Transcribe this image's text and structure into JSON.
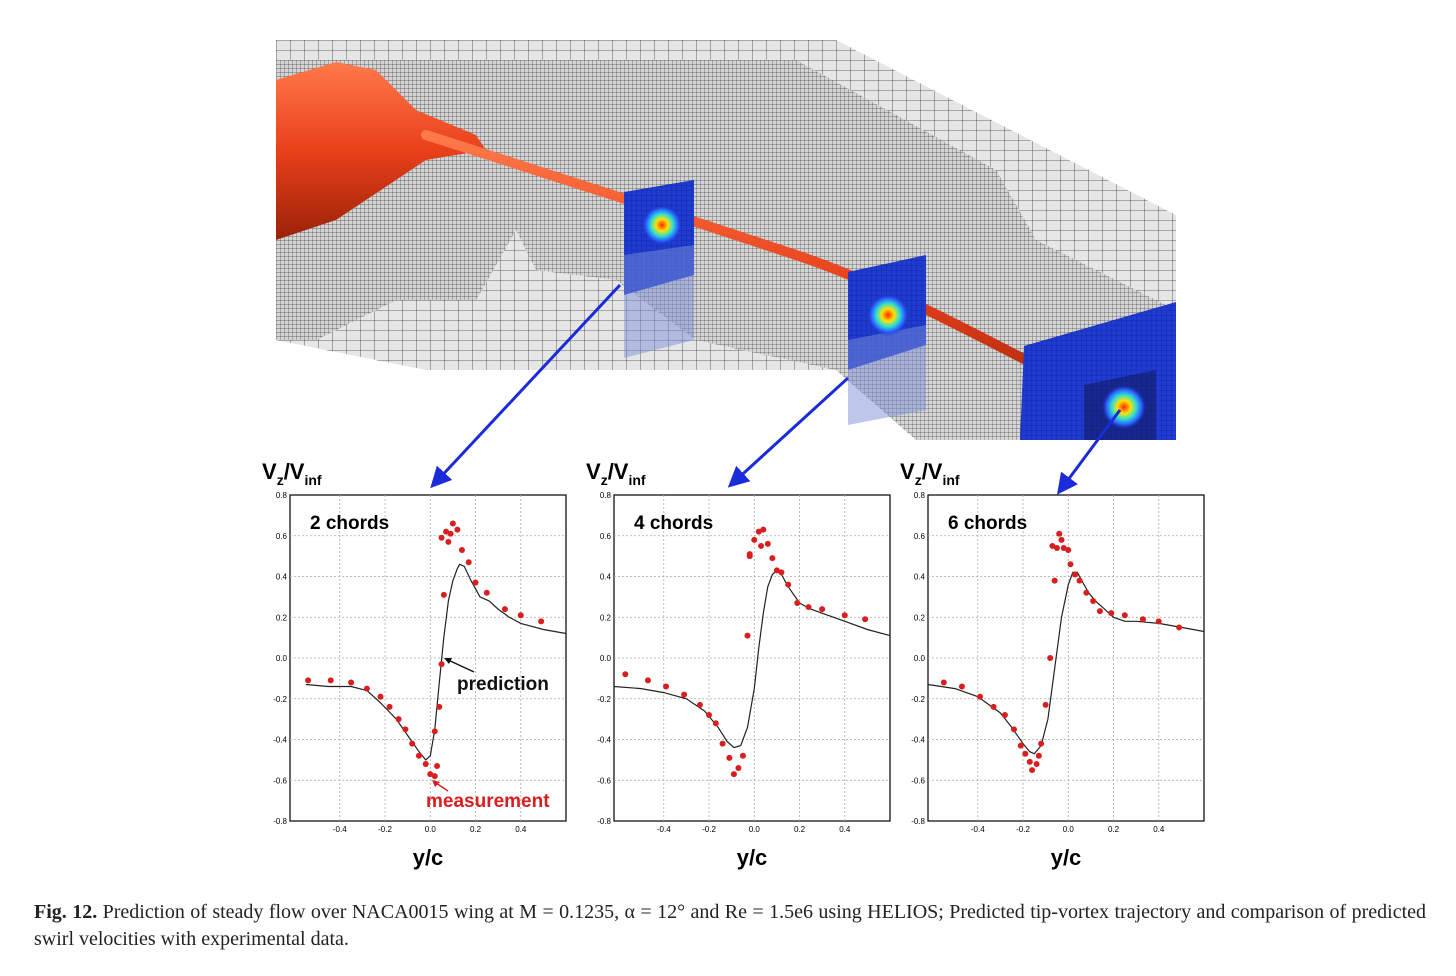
{
  "caption": {
    "label": "Fig. 12.",
    "text": "Prediction of steady flow over NACA0015 wing at M = 0.1235, α = 12° and Re = 1.5e6 using HELIOS; Predicted tip-vortex trajectory and comparison of predicted swirl velocities with experimental data."
  },
  "colors": {
    "vortex": "#e8401a",
    "slice": "#1a2fc8",
    "arrow": "#1a2bd8",
    "measurement": "#d81e1e",
    "prediction": "#222222",
    "mesh": "#555555"
  },
  "annotations": {
    "prediction_label": "prediction",
    "measurement_label": "measurement"
  },
  "chart_data": [
    {
      "type": "scatter",
      "title": "2 chords",
      "ylabel": "Vz/Vinf",
      "xlabel": "y/c",
      "xlim": [
        -0.62,
        0.6
      ],
      "ylim": [
        -0.8,
        0.8
      ],
      "xticks": [
        -0.4,
        -0.2,
        0.0,
        0.2,
        0.4
      ],
      "yticks": [
        -0.8,
        -0.6,
        -0.4,
        -0.2,
        0.0,
        0.2,
        0.4,
        0.6,
        0.8
      ],
      "grid": true,
      "series": [
        {
          "name": "prediction",
          "kind": "line",
          "x": [
            -0.55,
            -0.45,
            -0.35,
            -0.28,
            -0.22,
            -0.15,
            -0.1,
            -0.05,
            -0.02,
            0.0,
            0.02,
            0.04,
            0.06,
            0.08,
            0.1,
            0.12,
            0.13,
            0.15,
            0.18,
            0.22,
            0.26,
            0.3,
            0.35,
            0.4,
            0.5,
            0.6
          ],
          "y": [
            -0.13,
            -0.14,
            -0.14,
            -0.16,
            -0.22,
            -0.3,
            -0.38,
            -0.46,
            -0.5,
            -0.48,
            -0.35,
            -0.12,
            0.1,
            0.28,
            0.38,
            0.44,
            0.46,
            0.45,
            0.38,
            0.3,
            0.28,
            0.24,
            0.2,
            0.17,
            0.14,
            0.12
          ]
        },
        {
          "name": "measurement",
          "kind": "scatter",
          "x": [
            -0.54,
            -0.44,
            -0.35,
            -0.28,
            -0.22,
            -0.18,
            -0.14,
            -0.11,
            -0.08,
            -0.05,
            -0.02,
            0.0,
            0.02,
            0.03,
            0.02,
            0.04,
            0.05,
            0.06,
            0.08,
            0.09,
            0.1,
            0.12,
            0.14,
            0.17,
            0.2,
            0.25,
            0.33,
            0.4,
            0.49,
            0.05,
            0.07
          ],
          "y": [
            -0.11,
            -0.11,
            -0.12,
            -0.15,
            -0.19,
            -0.24,
            -0.3,
            -0.35,
            -0.42,
            -0.48,
            -0.52,
            -0.57,
            -0.58,
            -0.53,
            -0.36,
            -0.24,
            -0.03,
            0.31,
            0.57,
            0.61,
            0.66,
            0.63,
            0.53,
            0.47,
            0.37,
            0.32,
            0.24,
            0.21,
            0.18,
            0.59,
            0.62
          ]
        }
      ]
    },
    {
      "type": "scatter",
      "title": "4 chords",
      "ylabel": "Vz/Vinf",
      "xlabel": "y/c",
      "xlim": [
        -0.62,
        0.6
      ],
      "ylim": [
        -0.8,
        0.8
      ],
      "xticks": [
        -0.4,
        -0.2,
        0.0,
        0.2,
        0.4
      ],
      "yticks": [
        -0.8,
        -0.6,
        -0.4,
        -0.2,
        0.0,
        0.2,
        0.4,
        0.6,
        0.8
      ],
      "grid": true,
      "series": [
        {
          "name": "prediction",
          "kind": "line",
          "x": [
            -0.62,
            -0.5,
            -0.4,
            -0.3,
            -0.22,
            -0.16,
            -0.12,
            -0.09,
            -0.06,
            -0.03,
            0.0,
            0.02,
            0.04,
            0.06,
            0.08,
            0.1,
            0.12,
            0.15,
            0.2,
            0.25,
            0.3,
            0.4,
            0.5,
            0.6
          ],
          "y": [
            -0.14,
            -0.15,
            -0.17,
            -0.2,
            -0.26,
            -0.34,
            -0.41,
            -0.44,
            -0.43,
            -0.34,
            -0.15,
            0.05,
            0.22,
            0.35,
            0.41,
            0.43,
            0.41,
            0.35,
            0.27,
            0.24,
            0.22,
            0.18,
            0.14,
            0.11
          ]
        },
        {
          "name": "measurement",
          "kind": "scatter",
          "x": [
            -0.57,
            -0.47,
            -0.39,
            -0.31,
            -0.24,
            -0.2,
            -0.17,
            -0.14,
            -0.11,
            -0.09,
            -0.07,
            -0.05,
            -0.03,
            -0.02,
            -0.02,
            0.0,
            0.02,
            0.04,
            0.06,
            0.08,
            0.1,
            0.12,
            0.15,
            0.19,
            0.24,
            0.3,
            0.4,
            0.49,
            0.03
          ],
          "y": [
            -0.08,
            -0.11,
            -0.14,
            -0.18,
            -0.23,
            -0.28,
            -0.32,
            -0.42,
            -0.49,
            -0.57,
            -0.54,
            -0.48,
            0.11,
            0.5,
            0.51,
            0.58,
            0.62,
            0.63,
            0.56,
            0.49,
            0.43,
            0.42,
            0.36,
            0.27,
            0.25,
            0.24,
            0.21,
            0.19,
            0.55
          ]
        }
      ]
    },
    {
      "type": "scatter",
      "title": "6 chords",
      "ylabel": "Vz/Vinf",
      "xlabel": "y/c",
      "xlim": [
        -0.62,
        0.6
      ],
      "ylim": [
        -0.8,
        0.8
      ],
      "xticks": [
        -0.4,
        -0.2,
        0.0,
        0.2,
        0.4
      ],
      "yticks": [
        -0.8,
        -0.6,
        -0.4,
        -0.2,
        0.0,
        0.2,
        0.4,
        0.6,
        0.8
      ],
      "grid": true,
      "series": [
        {
          "name": "prediction",
          "kind": "line",
          "x": [
            -0.62,
            -0.5,
            -0.4,
            -0.3,
            -0.25,
            -0.2,
            -0.17,
            -0.15,
            -0.12,
            -0.09,
            -0.06,
            -0.03,
            0.0,
            0.02,
            0.04,
            0.06,
            0.09,
            0.12,
            0.16,
            0.2,
            0.25,
            0.3,
            0.4,
            0.5,
            0.6
          ],
          "y": [
            -0.13,
            -0.15,
            -0.19,
            -0.27,
            -0.34,
            -0.42,
            -0.46,
            -0.47,
            -0.43,
            -0.3,
            -0.05,
            0.2,
            0.36,
            0.42,
            0.42,
            0.38,
            0.32,
            0.28,
            0.24,
            0.2,
            0.18,
            0.18,
            0.17,
            0.15,
            0.13
          ]
        },
        {
          "name": "measurement",
          "kind": "scatter",
          "x": [
            -0.55,
            -0.47,
            -0.39,
            -0.33,
            -0.28,
            -0.24,
            -0.21,
            -0.19,
            -0.17,
            -0.16,
            -0.14,
            -0.13,
            -0.12,
            -0.1,
            -0.08,
            -0.06,
            -0.05,
            -0.04,
            -0.03,
            -0.02,
            0.0,
            0.01,
            0.03,
            0.05,
            0.08,
            0.11,
            0.14,
            0.19,
            0.25,
            0.33,
            0.4,
            0.49,
            -0.07
          ],
          "y": [
            -0.12,
            -0.14,
            -0.19,
            -0.24,
            -0.28,
            -0.35,
            -0.43,
            -0.47,
            -0.51,
            -0.55,
            -0.52,
            -0.48,
            -0.42,
            -0.23,
            0.0,
            0.38,
            0.54,
            0.61,
            0.58,
            0.54,
            0.53,
            0.46,
            0.41,
            0.38,
            0.32,
            0.28,
            0.23,
            0.22,
            0.21,
            0.19,
            0.18,
            0.15,
            0.55
          ]
        }
      ]
    }
  ]
}
